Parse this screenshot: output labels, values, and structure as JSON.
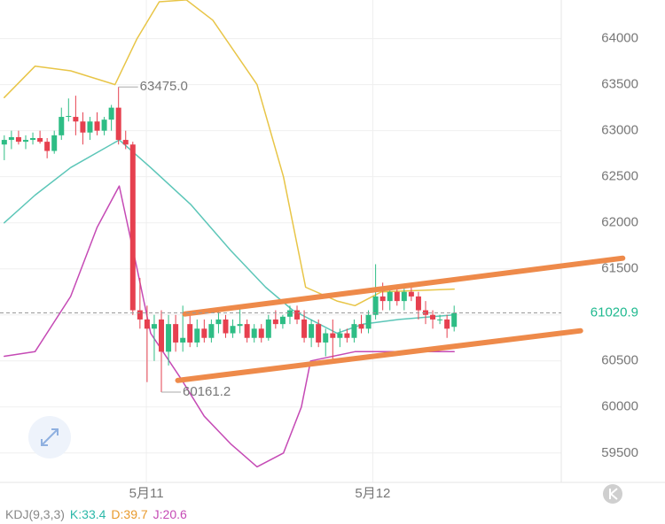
{
  "chart_data": {
    "type": "candlestick",
    "up_color": "#2ebd85",
    "down_color": "#e6404f",
    "open": [
      62850,
      62900,
      62930,
      62880,
      62900,
      62920,
      62880,
      62780,
      62950,
      63150,
      63150,
      63100,
      62980,
      63100,
      63000,
      63120,
      63250,
      62900,
      62850,
      61050,
      60950,
      60850,
      60950,
      60600,
      60900,
      60700,
      60900,
      60700,
      60850,
      60750,
      60900,
      60950,
      60800,
      60880,
      60900,
      60750,
      60850,
      60750,
      60950,
      60900,
      60980,
      61050,
      60950,
      60750,
      60900,
      60700,
      60800,
      60750,
      60800,
      60750,
      60900,
      60850,
      61000,
      61200,
      61150,
      61250,
      61150,
      61250,
      61200,
      61050,
      61000,
      60950,
      60950,
      60870
    ],
    "high": [
      62950,
      63000,
      63000,
      62950,
      62980,
      63000,
      62920,
      63000,
      63250,
      63350,
      63380,
      63200,
      63150,
      63200,
      63150,
      63280,
      63475,
      63000,
      62880,
      61400,
      61100,
      61000,
      61050,
      61000,
      61000,
      61100,
      61000,
      60950,
      60950,
      60950,
      61050,
      61000,
      60950,
      61100,
      60950,
      60900,
      60900,
      61000,
      61050,
      61000,
      61100,
      61100,
      61050,
      60950,
      60950,
      60850,
      60950,
      60850,
      60850,
      60950,
      61000,
      61050,
      61550,
      61350,
      61300,
      61300,
      61300,
      61300,
      61250,
      61150,
      61050,
      61000,
      61000,
      61100
    ],
    "low": [
      62680,
      62800,
      62850,
      62800,
      62850,
      62860,
      62700,
      62750,
      62900,
      63100,
      62950,
      62850,
      62900,
      62950,
      62950,
      63000,
      62850,
      62800,
      61000,
      60850,
      60270,
      60500,
      60161.2,
      60450,
      60600,
      60600,
      60650,
      60650,
      60700,
      60700,
      60800,
      60750,
      60750,
      60800,
      60700,
      60700,
      60700,
      60720,
      60850,
      60850,
      60900,
      60900,
      60700,
      60650,
      60650,
      60550,
      60500,
      60650,
      60700,
      60700,
      60800,
      60800,
      60950,
      61050,
      61050,
      61100,
      61050,
      61150,
      60950,
      60900,
      60850,
      60900,
      60750,
      60820
    ],
    "close": [
      62900,
      62930,
      62880,
      62900,
      62920,
      62880,
      62780,
      62950,
      63150,
      63160,
      63100,
      62980,
      63100,
      63000,
      63120,
      63250,
      62900,
      62850,
      61050,
      60950,
      60850,
      60900,
      60600,
      60900,
      60700,
      60750,
      60700,
      60850,
      60750,
      60900,
      60950,
      60800,
      60880,
      60900,
      60750,
      60850,
      60750,
      60950,
      60900,
      60980,
      61050,
      60950,
      60750,
      60900,
      60700,
      60800,
      60750,
      60800,
      60750,
      60900,
      60850,
      61000,
      61200,
      61150,
      61250,
      61150,
      61250,
      61200,
      61050,
      61000,
      60950,
      60950,
      60850,
      61020.9
    ],
    "overlays": [
      {
        "color": "#e8c547",
        "x": [
          0,
          4.3,
          9.3,
          15.5,
          18.6,
          21.7,
          25.5,
          29.2,
          35.4,
          39.1,
          42.2,
          46.6,
          49.1,
          52.8,
          63
        ],
        "values": [
          63360,
          63700,
          63650,
          63500,
          64000,
          64400,
          64420,
          64200,
          63500,
          62500,
          61300,
          61150,
          61100,
          61250,
          61280
        ]
      },
      {
        "color": "#5cc6b8",
        "x": [
          0,
          4.3,
          9.3,
          16.1,
          20.5,
          26.1,
          31.7,
          36.6,
          40.4,
          44.1,
          46.6,
          50.3,
          55.3,
          63
        ],
        "values": [
          62000,
          62300,
          62600,
          62900,
          62600,
          62200,
          61700,
          61300,
          61050,
          60900,
          60800,
          60900,
          60950,
          61000
        ]
      },
      {
        "color": "#c54ab5",
        "x": [
          0,
          4.3,
          9.3,
          13,
          16.1,
          18.6,
          20.5,
          24.8,
          28,
          31.7,
          35.4,
          39.1,
          41.6,
          42.9,
          49.1,
          63
        ],
        "values": [
          60550,
          60600,
          61200,
          61950,
          62400,
          61500,
          60800,
          60300,
          59900,
          59600,
          59350,
          59500,
          60000,
          60500,
          60600,
          60600
        ]
      }
    ],
    "trendlines": [
      {
        "color": "#ee8a4a",
        "x": [
          25.3,
          86.6
        ],
        "values": [
          61010,
          61615
        ]
      },
      {
        "color": "#ee8a4a",
        "x": [
          24.3,
          80.7
        ],
        "values": [
          60288,
          60827
        ]
      }
    ],
    "annotations": [
      {
        "label": "63475.0",
        "value": 63475,
        "x": 16
      },
      {
        "label": "60161.2",
        "value": 60161.2,
        "x": 22
      }
    ],
    "last_price": {
      "value": 61020.9
    },
    "xlim": [
      -0.6,
      78
    ],
    "ylim": [
      59200,
      64400
    ],
    "yticks": [
      59500,
      60000,
      60500,
      61000,
      61500,
      62000,
      62500,
      63000,
      63500,
      64000
    ],
    "xticks": [
      {
        "value": 19.9,
        "label": "5月11"
      },
      {
        "value": 51.6,
        "label": "5月12"
      }
    ],
    "grid": true,
    "indicator": {
      "label": "KDJ(9,3,3)",
      "items": [
        {
          "name": "K:",
          "value": 33.4,
          "color": "#2bb8a8"
        },
        {
          "name": "D:",
          "value": 39.7,
          "color": "#e89a2c"
        },
        {
          "name": "J:",
          "value": 20.6,
          "color": "#c54ab5"
        }
      ]
    }
  }
}
